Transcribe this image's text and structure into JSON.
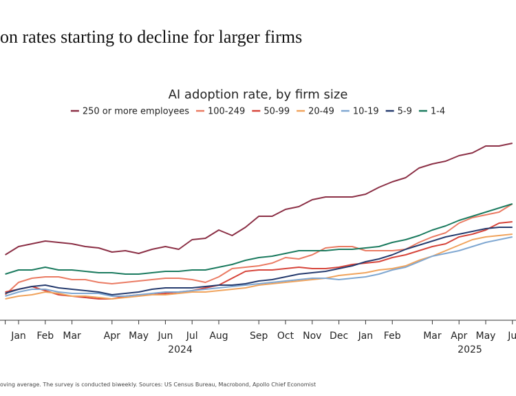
{
  "chart_data": {
    "type": "line",
    "title": "on rates starting to decline for larger firms",
    "subtitle": "AI adoption rate, by firm size",
    "footer": "oving average. The survey is conducted biweekly. Sources: US Census Bureau, Macrobond, Apollo Chief Economist",
    "year_labels": [
      "2024",
      "2025"
    ],
    "categories": [
      null,
      "Jan",
      null,
      "Feb",
      null,
      "Mar",
      null,
      null,
      "Apr",
      null,
      "May",
      null,
      "Jun",
      null,
      "Jul",
      null,
      "Aug",
      null,
      null,
      "Sep",
      null,
      "Oct",
      null,
      "Nov",
      null,
      "Dec",
      null,
      "Jan",
      null,
      "Feb",
      null,
      null,
      "Mar",
      null,
      "Apr",
      null,
      "May",
      null,
      "Ju"
    ],
    "ylim": [
      0,
      14
    ],
    "series": [
      {
        "name": "250 or more employees",
        "color": "#8b2f45",
        "values": [
          5.5,
          6.1,
          6.3,
          6.5,
          6.4,
          6.3,
          6.1,
          6.0,
          5.7,
          5.8,
          5.6,
          5.9,
          6.1,
          5.9,
          6.6,
          6.7,
          7.3,
          6.9,
          7.5,
          8.3,
          8.3,
          8.8,
          9.0,
          9.5,
          9.7,
          9.7,
          9.7,
          9.9,
          10.4,
          10.8,
          11.1,
          11.8,
          12.1,
          12.3,
          12.7,
          12.9,
          13.4,
          13.4,
          13.6
        ]
      },
      {
        "name": "100-249",
        "color": "#ea7a62",
        "values": [
          2.6,
          3.5,
          3.8,
          3.9,
          3.9,
          3.7,
          3.7,
          3.5,
          3.4,
          3.5,
          3.6,
          3.7,
          3.8,
          3.8,
          3.7,
          3.5,
          3.9,
          4.5,
          4.6,
          4.7,
          4.9,
          5.3,
          5.2,
          5.5,
          6.0,
          6.1,
          6.1,
          5.8,
          5.8,
          5.8,
          5.9,
          6.4,
          6.8,
          7.1,
          7.8,
          8.2,
          8.4,
          8.6,
          9.2
        ]
      },
      {
        "name": "50-99",
        "color": "#d6443a",
        "values": [
          2.8,
          3.0,
          3.2,
          2.9,
          2.6,
          2.5,
          2.4,
          2.3,
          2.3,
          2.5,
          2.6,
          2.6,
          2.7,
          2.8,
          2.9,
          3.1,
          3.3,
          3.8,
          4.3,
          4.4,
          4.4,
          4.5,
          4.6,
          4.5,
          4.5,
          4.6,
          4.8,
          4.9,
          5.0,
          5.3,
          5.5,
          5.8,
          6.1,
          6.3,
          6.8,
          7.0,
          7.3,
          7.8,
          7.9
        ]
      },
      {
        "name": "20-49",
        "color": "#f0a35c",
        "values": [
          2.3,
          2.5,
          2.6,
          2.8,
          2.7,
          2.5,
          2.5,
          2.4,
          2.3,
          2.4,
          2.5,
          2.6,
          2.6,
          2.7,
          2.8,
          2.8,
          2.9,
          3.0,
          3.1,
          3.3,
          3.4,
          3.5,
          3.6,
          3.7,
          3.8,
          4.0,
          4.1,
          4.2,
          4.4,
          4.5,
          4.7,
          5.1,
          5.4,
          5.8,
          6.2,
          6.6,
          6.8,
          6.9,
          7.0
        ]
      },
      {
        "name": "10-19",
        "color": "#7fa7d1",
        "values": [
          2.5,
          2.8,
          3.0,
          3.0,
          2.8,
          2.7,
          2.7,
          2.7,
          2.5,
          2.5,
          2.6,
          2.7,
          2.8,
          2.8,
          2.9,
          3.0,
          3.1,
          3.2,
          3.3,
          3.4,
          3.5,
          3.6,
          3.7,
          3.8,
          3.8,
          3.7,
          3.8,
          3.9,
          4.1,
          4.4,
          4.6,
          5.0,
          5.4,
          5.6,
          5.8,
          6.1,
          6.4,
          6.6,
          6.8
        ]
      },
      {
        "name": "5-9",
        "color": "#253b6e",
        "values": [
          2.7,
          3.0,
          3.2,
          3.3,
          3.1,
          3.0,
          2.9,
          2.8,
          2.6,
          2.7,
          2.8,
          3.0,
          3.1,
          3.1,
          3.1,
          3.2,
          3.3,
          3.3,
          3.4,
          3.6,
          3.7,
          3.9,
          4.1,
          4.2,
          4.3,
          4.5,
          4.7,
          5.0,
          5.2,
          5.5,
          5.9,
          6.2,
          6.5,
          6.8,
          7.0,
          7.2,
          7.4,
          7.5,
          7.5
        ]
      },
      {
        "name": "1-4",
        "color": "#1a7a5e",
        "values": [
          4.1,
          4.4,
          4.4,
          4.6,
          4.4,
          4.4,
          4.3,
          4.2,
          4.2,
          4.1,
          4.1,
          4.2,
          4.3,
          4.3,
          4.4,
          4.4,
          4.6,
          4.8,
          5.1,
          5.3,
          5.4,
          5.6,
          5.8,
          5.8,
          5.8,
          5.9,
          5.9,
          6.0,
          6.1,
          6.4,
          6.6,
          6.9,
          7.3,
          7.6,
          8.0,
          8.3,
          8.6,
          8.9,
          9.2
        ]
      }
    ]
  }
}
